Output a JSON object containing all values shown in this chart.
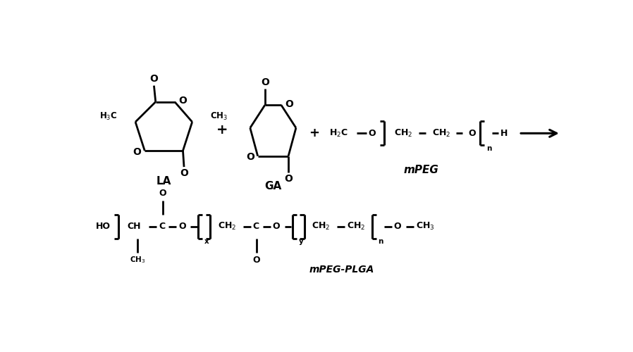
{
  "background_color": "#ffffff",
  "line_color": "#000000",
  "text_color": "#000000",
  "fig_width": 8.98,
  "fig_height": 5.0,
  "dpi": 100,
  "labels": {
    "LA": "LA",
    "GA": "GA",
    "mPEG": "mPEG",
    "mPEG_PLGA": "mPEG-PLGA"
  },
  "lw": 2.0,
  "fs_main": 9,
  "fs_small": 8,
  "fs_label": 11
}
